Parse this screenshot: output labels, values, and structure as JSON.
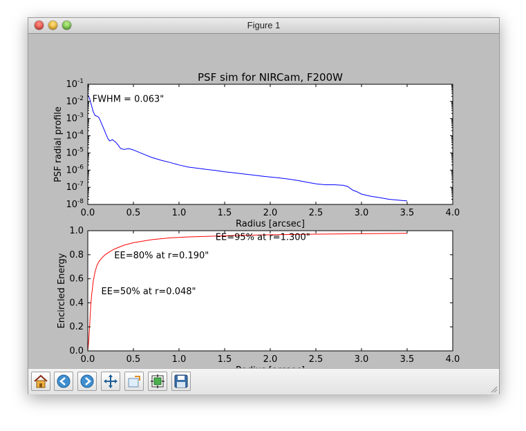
{
  "window": {
    "title": "Figure 1"
  },
  "toolbar": {
    "buttons": [
      {
        "name": "home-icon"
      },
      {
        "name": "back-icon"
      },
      {
        "name": "forward-icon"
      },
      {
        "name": "pan-icon"
      },
      {
        "name": "zoom-rect-icon"
      },
      {
        "name": "configure-subplots-icon"
      },
      {
        "name": "save-icon"
      }
    ]
  },
  "chart_data": [
    {
      "type": "line",
      "title": "PSF sim for NIRCam, F200W",
      "xlabel": "Radius [arcsec]",
      "ylabel": "PSF radial profile",
      "xlim": [
        0.0,
        4.0
      ],
      "ylim": [
        1e-08,
        0.1
      ],
      "yscale": "log",
      "grid": false,
      "xticks": [
        "0.0",
        "0.5",
        "1.0",
        "1.5",
        "2.0",
        "2.5",
        "3.0",
        "3.5",
        "4.0"
      ],
      "yticks": [
        {
          "base": "10",
          "exp": "-8"
        },
        {
          "base": "10",
          "exp": "-7"
        },
        {
          "base": "10",
          "exp": "-6"
        },
        {
          "base": "10",
          "exp": "-5"
        },
        {
          "base": "10",
          "exp": "-4"
        },
        {
          "base": "10",
          "exp": "-3"
        },
        {
          "base": "10",
          "exp": "-2"
        },
        {
          "base": "10",
          "exp": "-1"
        }
      ],
      "annotations": [
        {
          "text": "FWHM = 0.063\"",
          "x": 0.05,
          "y": 0.015
        }
      ],
      "series": [
        {
          "color": "#0000ff",
          "x": [
            0.0,
            0.02,
            0.04,
            0.06,
            0.08,
            0.1,
            0.12,
            0.14,
            0.16,
            0.18,
            0.2,
            0.22,
            0.24,
            0.27,
            0.3,
            0.33,
            0.36,
            0.4,
            0.45,
            0.5,
            0.6,
            0.7,
            0.8,
            0.9,
            1.0,
            1.1,
            1.2,
            1.3,
            1.4,
            1.5,
            1.6,
            1.7,
            1.8,
            1.9,
            2.0,
            2.1,
            2.2,
            2.3,
            2.4,
            2.5,
            2.6,
            2.7,
            2.8,
            2.85,
            2.9,
            2.95,
            3.0,
            3.1,
            3.2,
            3.3,
            3.4,
            3.5
          ],
          "y": [
            0.025,
            0.015,
            0.006,
            0.0025,
            0.0015,
            0.0014,
            0.0012,
            0.0007,
            0.0004,
            0.00022,
            0.00012,
            7e-05,
            5e-05,
            6e-05,
            4.5e-05,
            3e-05,
            1.8e-05,
            1.6e-05,
            1.8e-05,
            1.5e-05,
            9e-06,
            5.5e-06,
            3.8e-06,
            2.8e-06,
            2e-06,
            1.5e-06,
            1.3e-06,
            1.1e-06,
            9.5e-07,
            8e-07,
            7e-07,
            6e-07,
            5.2e-07,
            4.5e-07,
            4e-07,
            3.5e-07,
            3e-07,
            2.5e-07,
            2e-07,
            1.6e-07,
            1.4e-07,
            1.4e-07,
            1.3e-07,
            1.1e-07,
            7e-08,
            5.5e-08,
            4e-08,
            3e-08,
            2.5e-08,
            2e-08,
            1.8e-08,
            1.6e-08
          ]
        }
      ]
    },
    {
      "type": "line",
      "title": "",
      "xlabel": "Radius [arcsec]",
      "ylabel": "Encircled Energy",
      "xlim": [
        0.0,
        4.0
      ],
      "ylim": [
        0.0,
        1.0
      ],
      "grid": false,
      "xticks": [
        "0.0",
        "0.5",
        "1.0",
        "1.5",
        "2.0",
        "2.5",
        "3.0",
        "3.5",
        "4.0"
      ],
      "yticks": [
        "0.0",
        "0.2",
        "0.4",
        "0.6",
        "0.8",
        "1.0"
      ],
      "annotations": [
        {
          "text": "EE=50% at r=0.048\"",
          "x": 0.148,
          "y": 0.5
        },
        {
          "text": "EE=80% at r=0.190\"",
          "x": 0.29,
          "y": 0.8
        },
        {
          "text": "EE=95% at r=1.300\"",
          "x": 1.4,
          "y": 0.95
        }
      ],
      "series": [
        {
          "color": "#ff0000",
          "x": [
            0.0,
            0.01,
            0.02,
            0.03,
            0.04,
            0.048,
            0.06,
            0.08,
            0.1,
            0.12,
            0.15,
            0.19,
            0.25,
            0.3,
            0.4,
            0.5,
            0.7,
            0.9,
            1.1,
            1.3,
            1.6,
            2.0,
            2.5,
            3.0,
            3.5
          ],
          "y": [
            0.0,
            0.08,
            0.2,
            0.35,
            0.45,
            0.5,
            0.58,
            0.66,
            0.71,
            0.74,
            0.77,
            0.8,
            0.83,
            0.85,
            0.88,
            0.9,
            0.925,
            0.94,
            0.948,
            0.953,
            0.96,
            0.966,
            0.971,
            0.975,
            0.978
          ]
        }
      ]
    }
  ]
}
